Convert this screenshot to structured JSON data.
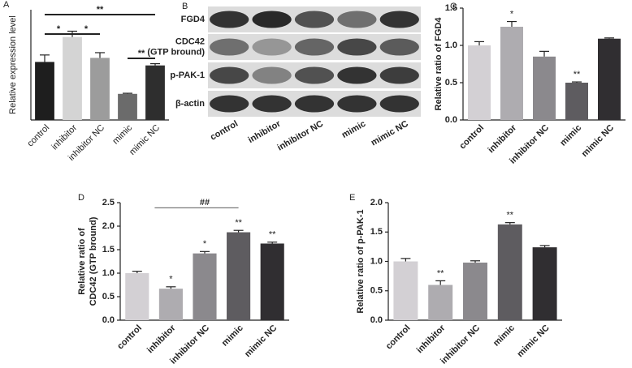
{
  "chart_data": [
    {
      "type": "bar",
      "panel_label": "A",
      "y_label": [
        "Relative expression level"
      ],
      "categories": [
        "control",
        "inhibitor",
        "inhibitor NC",
        "mimic",
        "mimic NC"
      ],
      "values": [
        1.0,
        1.43,
        1.07,
        0.45,
        0.94
      ],
      "errors": [
        0.12,
        0.1,
        0.09,
        0.01,
        0.03
      ],
      "colors": [
        "#1e1e1e",
        "#d4d4d4",
        "#9c9c9c",
        "#6b6b6b",
        "#2e2e2e"
      ],
      "ylim": [
        0,
        1.9
      ],
      "brackets": [
        {
          "label": "**",
          "from": "control",
          "to": "mimic NC"
        },
        {
          "label": "*",
          "from": "control",
          "to": "inhibitor"
        },
        {
          "label": "*",
          "from": "inhibitor",
          "to": "inhibitor NC"
        },
        {
          "label": "**",
          "from": "mimic",
          "to": "mimic NC"
        }
      ]
    },
    {
      "type": "bar",
      "panel_label": "C",
      "y_label": [
        "Relative ratio of FGD4"
      ],
      "categories": [
        "control",
        "inhibitor",
        "inhibitor NC",
        "mimic",
        "mimic NC"
      ],
      "values": [
        1.0,
        1.25,
        0.85,
        0.5,
        1.09
      ],
      "errors": [
        0.05,
        0.07,
        0.07,
        0.01,
        0.01
      ],
      "significance": [
        null,
        "*",
        null,
        "**",
        null
      ],
      "colors": [
        "#d3d0d4",
        "#aeacb0",
        "#8b898d",
        "#5e5c60",
        "#302e31"
      ],
      "ylim": [
        0,
        1.5
      ],
      "yticks": [
        {
          "value": 0,
          "label": "0.0"
        },
        0.5,
        {
          "value": 1,
          "label": "1.0"
        },
        1.5
      ]
    },
    {
      "type": "bar",
      "panel_label": "D",
      "y_label": [
        "Relative ratio of",
        "CDC42 (GTP bround)"
      ],
      "categories": [
        "control",
        "inhibitor",
        "inhibitor NC",
        "mimic",
        "mimic NC"
      ],
      "values": [
        1.0,
        0.67,
        1.42,
        1.87,
        1.63
      ],
      "errors": [
        0.04,
        0.04,
        0.04,
        0.04,
        0.03
      ],
      "significance": [
        null,
        "*",
        "*",
        "**",
        "**"
      ],
      "colors": [
        "#d3d0d4",
        "#aeacb0",
        "#8b898d",
        "#5e5c60",
        "#302e31"
      ],
      "ylim": [
        0,
        2.5
      ],
      "yticks": [
        {
          "value": 0,
          "label": "0.0"
        },
        0.5,
        {
          "value": 1,
          "label": "1.0"
        },
        1.5,
        {
          "value": 2,
          "label": "2.0"
        },
        2.5
      ],
      "brackets": [
        {
          "label": "##",
          "from": "inhibitor",
          "to": "mimic"
        }
      ]
    },
    {
      "type": "bar",
      "panel_label": "E",
      "y_label": [
        "Relative ratio of p-PAK-1"
      ],
      "categories": [
        "control",
        "inhibitor",
        "inhibitor NC",
        "mimic",
        "mimic NC"
      ],
      "values": [
        1.0,
        0.6,
        0.98,
        1.63,
        1.24
      ],
      "errors": [
        0.05,
        0.07,
        0.03,
        0.03,
        0.03
      ],
      "significance": [
        null,
        "**",
        null,
        "**",
        null
      ],
      "colors": [
        "#d3d0d4",
        "#aeacb0",
        "#8b898d",
        "#5e5c60",
        "#302e31"
      ],
      "ylim": [
        0,
        2.0
      ],
      "yticks": [
        {
          "value": 0,
          "label": "0.0"
        },
        0.5,
        {
          "value": 1,
          "label": "1.0"
        },
        1.5,
        {
          "value": 2,
          "label": "2.0"
        }
      ]
    }
  ],
  "blot": {
    "panel_label": "B",
    "rows": [
      [
        "FGD4"
      ],
      [
        "CDC42",
        "(GTP bround)"
      ],
      [
        "p-PAK-1"
      ],
      [
        "β-actin"
      ]
    ],
    "lanes": [
      "control",
      "inhibitor",
      "inhibitor NC",
      "mimic",
      "mimic NC"
    ]
  }
}
